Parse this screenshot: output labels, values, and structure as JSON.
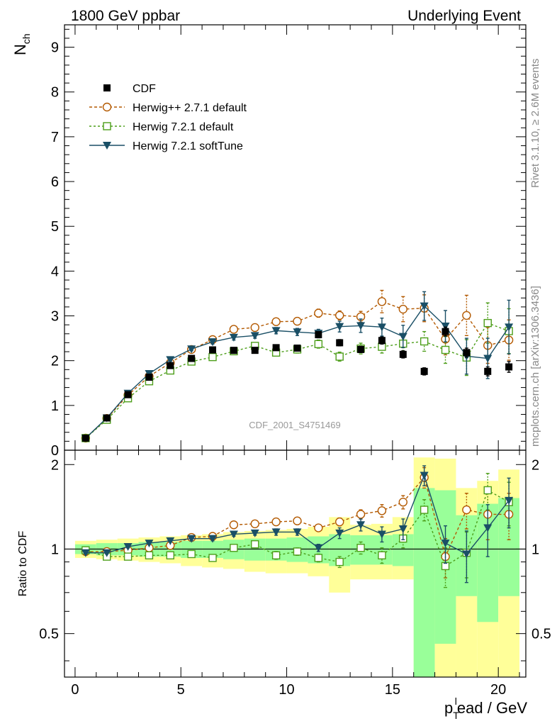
{
  "header": {
    "left": "1800 GeV ppbar",
    "right": "Underlying Event"
  },
  "side_text": {
    "rivet": "Rivet 3.1.10, ≥ 2.6M events",
    "mcplots": "mcplots.cern.ch [arXiv:1306.3436]"
  },
  "analysis_label": "CDF_2001_S4751469",
  "chart_data": [
    {
      "panel": "main",
      "type": "scatter",
      "ylabel": "N_ch",
      "ylabel_main": "N",
      "ylabel_sub": "ch",
      "xlim": [
        -0.5,
        21.3
      ],
      "ylim": [
        0,
        9.5
      ],
      "yticks": [
        {
          "v": 0,
          "label": "0"
        },
        {
          "v": 1,
          "label": "1"
        },
        {
          "v": 2,
          "label": "2"
        },
        {
          "v": 3,
          "label": "3"
        },
        {
          "v": 4,
          "label": "4"
        },
        {
          "v": 5,
          "label": "5"
        },
        {
          "v": 6,
          "label": "6"
        },
        {
          "v": 7,
          "label": "7"
        },
        {
          "v": 8,
          "label": "8"
        },
        {
          "v": 9,
          "label": "9"
        }
      ],
      "x": [
        0.5,
        1.5,
        2.5,
        3.5,
        4.5,
        5.5,
        6.5,
        7.5,
        8.5,
        9.5,
        10.5,
        11.5,
        12.5,
        13.5,
        14.5,
        15.5,
        16.5,
        17.5,
        18.5,
        19.5,
        20.5
      ],
      "series": [
        {
          "name": "CDF",
          "style": "data",
          "color": "#000000",
          "values": [
            0.27,
            0.72,
            1.24,
            1.63,
            1.89,
            2.05,
            2.24,
            2.23,
            2.23,
            2.29,
            2.28,
            2.58,
            2.4,
            2.25,
            2.45,
            2.14,
            1.76,
            2.65,
            2.18,
            1.76,
            1.86
          ],
          "errors": [
            0.02,
            0.03,
            0.03,
            0.04,
            0.04,
            0.04,
            0.05,
            0.05,
            0.05,
            0.06,
            0.06,
            0.07,
            0.07,
            0.07,
            0.08,
            0.08,
            0.08,
            0.1,
            0.1,
            0.1,
            0.12
          ]
        },
        {
          "name": "Herwig++ 2.7.1 default",
          "style": "circle-dashed",
          "color": "#b35900",
          "values": [
            0.27,
            0.71,
            1.23,
            1.65,
            1.95,
            2.25,
            2.47,
            2.7,
            2.74,
            2.87,
            2.88,
            3.06,
            3.01,
            2.98,
            3.32,
            3.15,
            3.17,
            2.48,
            3.01,
            2.34,
            2.46
          ],
          "errors": [
            0.01,
            0.02,
            0.02,
            0.03,
            0.03,
            0.04,
            0.05,
            0.06,
            0.06,
            0.07,
            0.08,
            0.09,
            0.1,
            0.12,
            0.25,
            0.28,
            0.3,
            0.35,
            0.45,
            0.4,
            0.45
          ]
        },
        {
          "name": "Herwig 7.2.1 default",
          "style": "square-dashed",
          "color": "#4d9e1a",
          "values": [
            0.27,
            0.68,
            1.16,
            1.54,
            1.78,
            1.98,
            2.08,
            2.21,
            2.33,
            2.18,
            2.25,
            2.37,
            2.09,
            2.27,
            2.31,
            2.38,
            2.43,
            2.24,
            2.07,
            2.84,
            2.66
          ],
          "errors": [
            0.01,
            0.02,
            0.02,
            0.03,
            0.03,
            0.04,
            0.05,
            0.06,
            0.06,
            0.07,
            0.08,
            0.09,
            0.1,
            0.12,
            0.14,
            0.18,
            0.22,
            0.3,
            0.4,
            0.45,
            0.5
          ]
        },
        {
          "name": "Herwig 7.2.1 softTune",
          "style": "triangle-solid",
          "color": "#1a4f66",
          "values": [
            0.27,
            0.72,
            1.27,
            1.71,
            2.02,
            2.26,
            2.42,
            2.52,
            2.56,
            2.67,
            2.64,
            2.61,
            2.76,
            2.78,
            2.75,
            2.54,
            3.22,
            2.77,
            2.1,
            2.05,
            2.75
          ],
          "errors": [
            0.01,
            0.02,
            0.02,
            0.03,
            0.03,
            0.04,
            0.05,
            0.06,
            0.06,
            0.07,
            0.08,
            0.09,
            0.12,
            0.15,
            0.2,
            0.25,
            0.32,
            0.35,
            0.4,
            0.45,
            0.6
          ]
        }
      ],
      "legend": "top-left"
    },
    {
      "panel": "ratio",
      "type": "scatter",
      "ylabel": "Ratio to CDF",
      "xlabel": "p_T^lead / GeV",
      "xlabel_main": "p",
      "xlabel_sub": "T",
      "xlabel_sup": "l",
      "xlabel_rest": "ead / GeV",
      "xlim": [
        -0.5,
        21.3
      ],
      "ylim": [
        0.35,
        2.25
      ],
      "yticks": [
        {
          "v": 0.5,
          "label": "0.5"
        },
        {
          "v": 1,
          "label": "1"
        },
        {
          "v": 2,
          "label": "2"
        }
      ],
      "xticks": [
        {
          "v": 0,
          "label": "0"
        },
        {
          "v": 5,
          "label": "5"
        },
        {
          "v": 10,
          "label": "10"
        },
        {
          "v": 15,
          "label": "15"
        },
        {
          "v": 20,
          "label": "20"
        }
      ],
      "x": [
        0.5,
        1.5,
        2.5,
        3.5,
        4.5,
        5.5,
        6.5,
        7.5,
        8.5,
        9.5,
        10.5,
        11.5,
        12.5,
        13.5,
        14.5,
        15.5,
        16.5,
        17.5,
        18.5,
        19.5,
        20.5
      ],
      "bands": {
        "yellow_low": [
          0.93,
          0.92,
          0.91,
          0.9,
          0.89,
          0.87,
          0.86,
          0.85,
          0.83,
          0.82,
          0.82,
          0.8,
          0.7,
          0.78,
          0.78,
          0.78,
          0.35,
          0.35,
          0.35,
          0.35,
          0.35
        ],
        "yellow_high": [
          1.07,
          1.08,
          1.09,
          1.1,
          1.11,
          1.12,
          1.13,
          1.15,
          1.16,
          1.17,
          1.18,
          1.2,
          1.3,
          1.22,
          1.23,
          1.3,
          2.12,
          2.1,
          1.65,
          1.75,
          1.92
        ],
        "green_low": [
          0.96,
          0.95,
          0.95,
          0.94,
          0.94,
          0.93,
          0.93,
          0.92,
          0.91,
          0.91,
          0.9,
          0.89,
          0.87,
          0.88,
          0.88,
          0.87,
          0.35,
          0.46,
          0.68,
          0.55,
          0.68
        ],
        "green_high": [
          1.04,
          1.05,
          1.05,
          1.06,
          1.06,
          1.07,
          1.07,
          1.08,
          1.09,
          1.09,
          1.1,
          1.11,
          1.13,
          1.12,
          1.12,
          1.13,
          1.65,
          1.62,
          1.32,
          1.45,
          1.52
        ]
      },
      "series": [
        {
          "name": "Herwig++ 2.7.1 default",
          "style": "circle-dashed",
          "color": "#b35900",
          "values": [
            0.98,
            0.98,
            0.99,
            1.01,
            1.03,
            1.1,
            1.11,
            1.22,
            1.23,
            1.25,
            1.26,
            1.19,
            1.25,
            1.33,
            1.37,
            1.47,
            1.8,
            0.94,
            1.38,
            1.33,
            1.33
          ],
          "errors": [
            0.01,
            0.01,
            0.01,
            0.01,
            0.01,
            0.02,
            0.02,
            0.02,
            0.02,
            0.03,
            0.03,
            0.03,
            0.04,
            0.05,
            0.07,
            0.08,
            0.15,
            0.15,
            0.2,
            0.25,
            0.25
          ]
        },
        {
          "name": "Herwig 7.2.1 default",
          "style": "square-dashed",
          "color": "#4d9e1a",
          "values": [
            0.99,
            0.94,
            0.94,
            0.95,
            0.95,
            0.96,
            0.93,
            1.01,
            1.04,
            0.95,
            0.98,
            0.93,
            0.9,
            1.01,
            0.95,
            1.09,
            1.38,
            0.87,
            0.97,
            1.62,
            1.47
          ],
          "errors": [
            0.01,
            0.01,
            0.01,
            0.01,
            0.01,
            0.02,
            0.02,
            0.02,
            0.02,
            0.03,
            0.03,
            0.03,
            0.04,
            0.05,
            0.06,
            0.08,
            0.12,
            0.14,
            0.18,
            0.24,
            0.26
          ]
        },
        {
          "name": "Herwig 7.2.1 softTune",
          "style": "triangle-solid",
          "color": "#1a4f66",
          "values": [
            0.97,
            0.97,
            1.02,
            1.05,
            1.07,
            1.09,
            1.09,
            1.13,
            1.14,
            1.15,
            1.15,
            1.01,
            1.14,
            1.22,
            1.13,
            1.18,
            1.83,
            1.05,
            0.96,
            1.19,
            1.49
          ],
          "errors": [
            0.01,
            0.01,
            0.01,
            0.01,
            0.01,
            0.02,
            0.02,
            0.02,
            0.02,
            0.03,
            0.03,
            0.03,
            0.05,
            0.06,
            0.07,
            0.1,
            0.15,
            0.16,
            0.2,
            0.25,
            0.3
          ]
        }
      ]
    }
  ]
}
